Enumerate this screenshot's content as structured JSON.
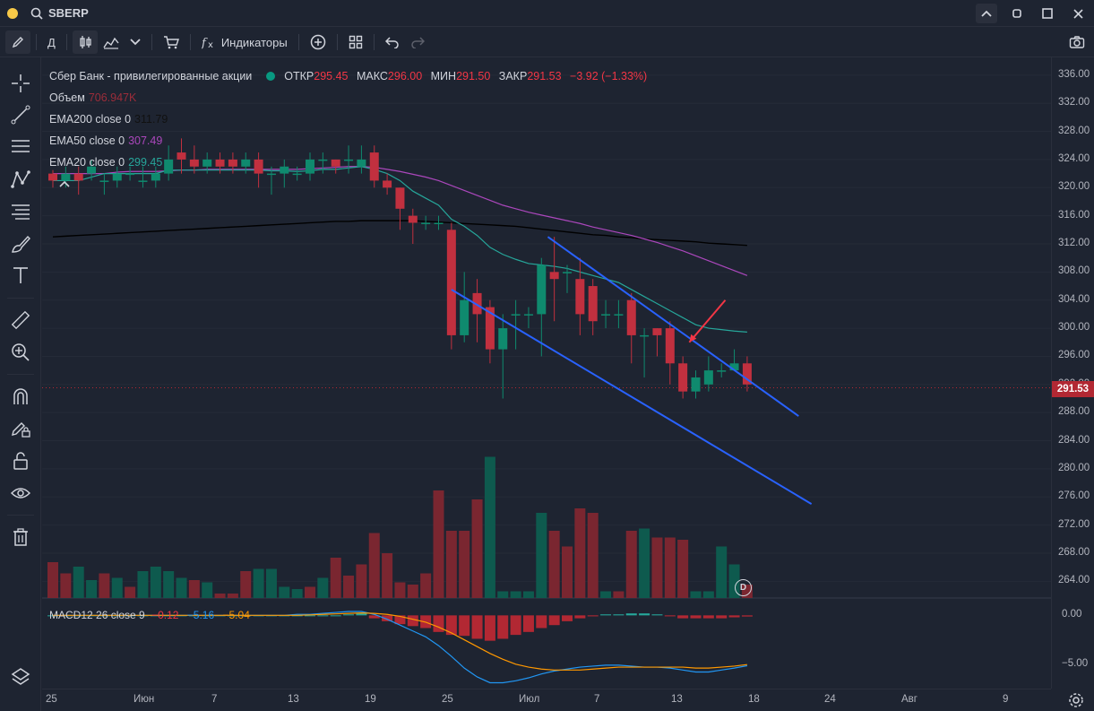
{
  "header": {
    "symbol": "SBERP",
    "icons": [
      "search-icon",
      "chevron-up-icon",
      "square-icon",
      "maximize-icon",
      "close-icon"
    ]
  },
  "toolbar": {
    "interval": "Д",
    "indicators_label": "Индикаторы",
    "icons": [
      "pencil-icon",
      "candles-icon",
      "area-chart-icon",
      "chevron-down-icon",
      "cart-icon",
      "fx-icon",
      "plus-circle-icon",
      "grid-icon",
      "undo-icon",
      "redo-icon",
      "camera-icon"
    ]
  },
  "sidebar": {
    "icons": [
      "crosshair-icon",
      "trendline-icon",
      "parallel-lines-icon",
      "pattern-icon",
      "fib-icon",
      "brush-icon",
      "text-icon",
      "ruler-icon",
      "zoom-icon",
      "magnet-icon",
      "lock-pencil-icon",
      "lock-icon",
      "eye-icon",
      "trash-icon",
      "layers-icon"
    ]
  },
  "legend": {
    "title": "Сбер Банк - привилегированные акции",
    "open_label": "ОТКР",
    "open": "295.45",
    "high_label": "МАКС",
    "high": "296.00",
    "low_label": "МИН",
    "low": "291.50",
    "close_label": "ЗАКР",
    "close": "291.53",
    "change": "−3.92 (−1.33%)",
    "volume_label": "Объем",
    "volume": "706.947K",
    "ema200_label": "EMA200 close 0",
    "ema200": "311.79",
    "ema50_label": "EMA50 close 0",
    "ema50": "307.49",
    "ema20_label": "EMA20 close 0",
    "ema20": "299.45"
  },
  "macd": {
    "label": "MACD12 26 close 9",
    "hist": "−0.12",
    "macd": "−5.16",
    "signal": "−5.04"
  },
  "colors": {
    "up": "#089981",
    "down": "#f23645",
    "ema200": "#000000",
    "ema50": "#ab47bc",
    "ema20": "#26a69a",
    "channel": "#2962ff",
    "arrow": "#f23645",
    "macd_line": "#2196f3",
    "signal_line": "#ff9800"
  },
  "price_tag": "291.53",
  "badge": "D",
  "chart_data": {
    "type": "candlestick",
    "ylim": [
      262,
      337
    ],
    "price_ticks": [
      "336.00",
      "332.00",
      "328.00",
      "324.00",
      "320.00",
      "316.00",
      "312.00",
      "308.00",
      "304.00",
      "300.00",
      "296.00",
      "292.00",
      "288.00",
      "284.00",
      "280.00",
      "276.00",
      "272.00",
      "268.00",
      "264.00"
    ],
    "macd_ticks": [
      "0.00",
      "−5.00"
    ],
    "time_ticks": [
      "25",
      "Июн",
      "7",
      "13",
      "19",
      "25",
      "Июл",
      "7",
      "13",
      "18",
      "24",
      "Авг",
      "9"
    ],
    "candles": [
      [
        322,
        321,
        320,
        322.5
      ],
      [
        321,
        322,
        320,
        323
      ],
      [
        322,
        321,
        319,
        323
      ],
      [
        322,
        323,
        321,
        324
      ],
      [
        321,
        321,
        319,
        322
      ],
      [
        321,
        322,
        320,
        323
      ],
      [
        322,
        322,
        321,
        323
      ],
      [
        321,
        321,
        320,
        323
      ],
      [
        321,
        322,
        320,
        323
      ],
      [
        322,
        324,
        321,
        326
      ],
      [
        325,
        324,
        322,
        327
      ],
      [
        324,
        323,
        322,
        326
      ],
      [
        323,
        324,
        322,
        325
      ],
      [
        324,
        323,
        322,
        325
      ],
      [
        324,
        323,
        322,
        325
      ],
      [
        323,
        324,
        322,
        325
      ],
      [
        324,
        322,
        320,
        325
      ],
      [
        322,
        322,
        319,
        323
      ],
      [
        322,
        323,
        320,
        324
      ],
      [
        322,
        322,
        321,
        323
      ],
      [
        322,
        324,
        321,
        325
      ],
      [
        324,
        324,
        322,
        325
      ],
      [
        324,
        323,
        322,
        324
      ],
      [
        324,
        324,
        322,
        326
      ],
      [
        323,
        324,
        322,
        326
      ],
      [
        325,
        321,
        320,
        326
      ],
      [
        321,
        320,
        319,
        322
      ],
      [
        320,
        317,
        314,
        320
      ],
      [
        316,
        315,
        312,
        317
      ],
      [
        315,
        315,
        314,
        316
      ],
      [
        315,
        315,
        314,
        316
      ],
      [
        314,
        299,
        297,
        315
      ],
      [
        299,
        304,
        298,
        308
      ],
      [
        305,
        302,
        298,
        307
      ],
      [
        303,
        297,
        295,
        304
      ],
      [
        297,
        300,
        290,
        302
      ],
      [
        302,
        302,
        297,
        304
      ],
      [
        302,
        302,
        300,
        303
      ],
      [
        302,
        309,
        296,
        310
      ],
      [
        308,
        307,
        301,
        313
      ],
      [
        308,
        308,
        305,
        309
      ],
      [
        307,
        302,
        299,
        310
      ],
      [
        306,
        301,
        299,
        307
      ],
      [
        302,
        302,
        300,
        304
      ],
      [
        302,
        302,
        300,
        304
      ],
      [
        304,
        299,
        295,
        305
      ],
      [
        299,
        299,
        293,
        300
      ],
      [
        300,
        299,
        296,
        300
      ],
      [
        300,
        295,
        292,
        301
      ],
      [
        295,
        291,
        290,
        296
      ],
      [
        291,
        293,
        290,
        294
      ],
      [
        292,
        294,
        291,
        296
      ],
      [
        294,
        294,
        293,
        295
      ],
      [
        294,
        295,
        294,
        297
      ],
      [
        295,
        292,
        291,
        296
      ]
    ],
    "volume": [
      [
        1.6,
        0
      ],
      [
        1.1,
        0
      ],
      [
        1.4,
        1
      ],
      [
        0.8,
        1
      ],
      [
        1.1,
        0
      ],
      [
        0.9,
        1
      ],
      [
        0.5,
        0
      ],
      [
        1.2,
        1
      ],
      [
        1.4,
        1
      ],
      [
        1.2,
        1
      ],
      [
        0.9,
        1
      ],
      [
        0.8,
        0
      ],
      [
        0.7,
        1
      ],
      [
        0.2,
        0
      ],
      [
        0.2,
        0
      ],
      [
        1.2,
        0
      ],
      [
        1.3,
        1
      ],
      [
        1.3,
        1
      ],
      [
        0.5,
        1
      ],
      [
        0.4,
        1
      ],
      [
        0.5,
        0
      ],
      [
        0.9,
        1
      ],
      [
        1.8,
        0
      ],
      [
        1.0,
        0
      ],
      [
        1.5,
        0
      ],
      [
        2.9,
        0
      ],
      [
        2.0,
        0
      ],
      [
        0.7,
        0
      ],
      [
        0.6,
        0
      ],
      [
        1.1,
        0
      ],
      [
        4.8,
        0
      ],
      [
        3.0,
        0
      ],
      [
        3.0,
        0
      ],
      [
        4.4,
        0
      ],
      [
        6.3,
        1
      ],
      [
        0.3,
        1
      ],
      [
        0.3,
        1
      ],
      [
        0.3,
        1
      ],
      [
        3.8,
        1
      ],
      [
        3.0,
        0
      ],
      [
        2.3,
        0
      ],
      [
        4.0,
        0
      ],
      [
        3.8,
        0
      ],
      [
        0.3,
        1
      ],
      [
        0.3,
        0
      ],
      [
        3.0,
        0
      ],
      [
        3.1,
        1
      ],
      [
        2.7,
        0
      ],
      [
        2.7,
        0
      ],
      [
        2.6,
        0
      ],
      [
        0.3,
        1
      ],
      [
        0.3,
        1
      ],
      [
        2.3,
        1
      ],
      [
        1.5,
        1
      ],
      [
        0.6,
        0
      ]
    ],
    "ema20": [
      321,
      321,
      321,
      321.5,
      322,
      322,
      322,
      322,
      322,
      322.5,
      322.5,
      322.5,
      322.5,
      322.5,
      322.5,
      322.5,
      322.5,
      322.4,
      322.4,
      322.3,
      322.4,
      322.6,
      322.6,
      322.8,
      323,
      322.6,
      322,
      321,
      319.5,
      318.5,
      317.5,
      315.5,
      314.5,
      313.2,
      311.5,
      310.5,
      309.8,
      309.2,
      309,
      308.8,
      308.5,
      308,
      307.5,
      307,
      306.5,
      305.5,
      304.5,
      303.5,
      302.5,
      301.5,
      300.5,
      300,
      299.8,
      299.6,
      299.45
    ],
    "ema50": [
      322,
      322,
      322,
      322,
      322,
      322.2,
      322.3,
      322.3,
      322.3,
      322.4,
      322.5,
      322.5,
      322.6,
      322.6,
      322.6,
      322.6,
      322.6,
      322.6,
      322.6,
      322.6,
      322.7,
      322.8,
      322.9,
      323,
      323,
      322.9,
      322.6,
      322.3,
      321.9,
      321.5,
      321,
      320.3,
      319.6,
      318.9,
      318.2,
      317.5,
      317,
      316.5,
      316.1,
      315.7,
      315.3,
      314.9,
      314.4,
      314,
      313.6,
      313.2,
      312.7,
      312.2,
      311.6,
      311,
      310.3,
      309.6,
      308.9,
      308.2,
      307.49
    ],
    "ema200": [
      313,
      313.1,
      313.2,
      313.3,
      313.4,
      313.5,
      313.6,
      313.7,
      313.8,
      313.9,
      314,
      314.1,
      314.2,
      314.3,
      314.4,
      314.5,
      314.6,
      314.7,
      314.8,
      314.9,
      315,
      315.1,
      315.2,
      315.2,
      315.3,
      315.3,
      315.3,
      315.3,
      315.3,
      315.2,
      315.1,
      315,
      314.9,
      314.8,
      314.7,
      314.6,
      314.5,
      314.3,
      314.1,
      313.9,
      313.7,
      313.5,
      313.3,
      313.2,
      313,
      312.9,
      312.7,
      312.6,
      312.5,
      312.4,
      312.3,
      312.1,
      312,
      311.9,
      311.79
    ],
    "macd_hist": [
      0,
      0,
      0,
      0,
      0,
      0,
      0,
      0,
      0,
      0,
      0,
      0,
      0,
      0,
      0,
      0,
      0,
      0,
      0,
      0,
      0,
      0,
      0,
      0.1,
      0.2,
      -0.3,
      -0.6,
      -0.9,
      -1.1,
      -1.3,
      -1.7,
      -2.0,
      -2.1,
      -2.4,
      -2.6,
      -2.4,
      -2.0,
      -1.7,
      -1.3,
      -1.0,
      -0.6,
      -0.3,
      -0.1,
      0.1,
      0.1,
      0.2,
      0.2,
      0.1,
      -0.1,
      -0.3,
      -0.3,
      -0.3,
      -0.3,
      -0.2,
      -0.12
    ],
    "macd_line": [
      0,
      0,
      0,
      0,
      0,
      0,
      0,
      0,
      0,
      0,
      0,
      0,
      0,
      0,
      0,
      0,
      0,
      0,
      0,
      0.1,
      0.1,
      0.2,
      0.3,
      0.4,
      0.4,
      0.1,
      -0.4,
      -1.0,
      -1.6,
      -2.2,
      -3.1,
      -4.2,
      -5.4,
      -6.3,
      -6.9,
      -6.9,
      -6.7,
      -6.4,
      -6.0,
      -5.7,
      -5.5,
      -5.3,
      -5.2,
      -5.1,
      -5.1,
      -5.2,
      -5.3,
      -5.3,
      -5.4,
      -5.6,
      -5.8,
      -5.8,
      -5.6,
      -5.4,
      -5.16
    ],
    "signal_line": [
      0,
      0,
      0,
      0,
      0,
      0,
      0,
      0,
      0,
      0,
      0,
      0,
      0,
      0,
      0,
      0,
      0,
      0,
      0,
      0,
      0.05,
      0.1,
      0.15,
      0.2,
      0.25,
      0.2,
      0.1,
      -0.1,
      -0.4,
      -0.7,
      -1.2,
      -1.8,
      -2.5,
      -3.2,
      -3.9,
      -4.5,
      -5.0,
      -5.3,
      -5.5,
      -5.6,
      -5.6,
      -5.6,
      -5.5,
      -5.4,
      -5.3,
      -5.3,
      -5.3,
      -5.3,
      -5.3,
      -5.3,
      -5.4,
      -5.4,
      -5.3,
      -5.2,
      -5.04
    ],
    "macd_ylim": [
      -7.5,
      1.5
    ],
    "channel_upper": [
      [
        38.5,
        313.0
      ],
      [
        58,
        287.5
      ]
    ],
    "channel_lower": [
      [
        31,
        305.5
      ],
      [
        59,
        275.0
      ]
    ]
  }
}
